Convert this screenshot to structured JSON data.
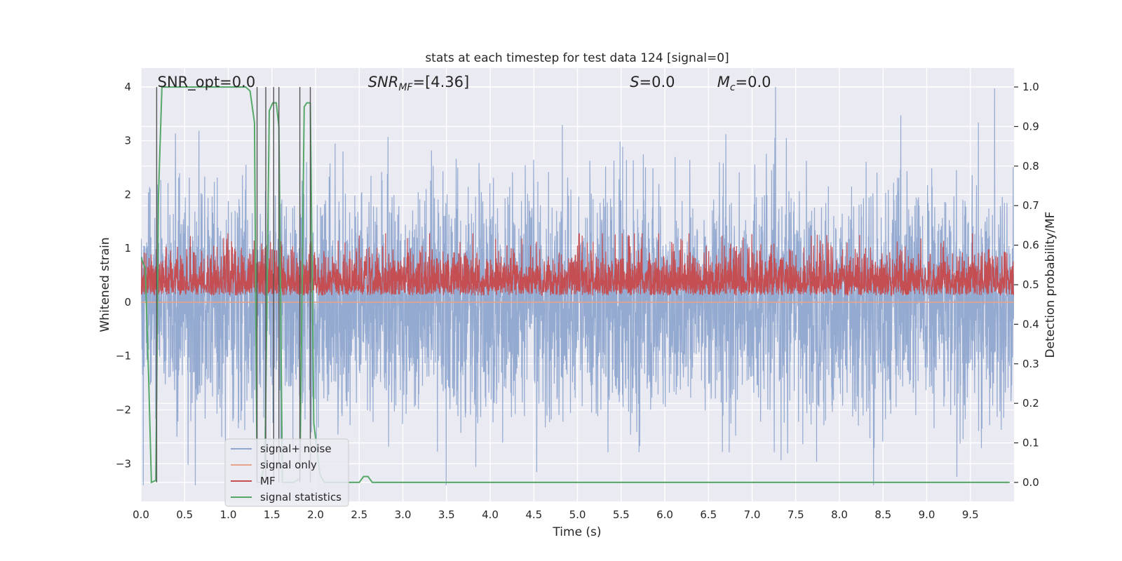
{
  "chart_data": {
    "type": "line",
    "title": "stats at each timestep for test data 124 [signal=0]",
    "xlabel": "Time (s)",
    "ylabel": "Whitened strain",
    "y2label": "Detection probability/MF",
    "xlim": [
      0.0,
      10.0
    ],
    "ylim": [
      -3.7,
      4.35
    ],
    "y2lim": [
      -0.048,
      1.048
    ],
    "x_ticks": [
      0.0,
      0.5,
      1.0,
      1.5,
      2.0,
      2.5,
      3.0,
      3.5,
      4.0,
      4.5,
      5.0,
      5.5,
      6.0,
      6.5,
      7.0,
      7.5,
      8.0,
      8.5,
      9.0,
      9.5
    ],
    "x_tick_labels": [
      "0.0",
      "0.5",
      "1.0",
      "1.5",
      "2.0",
      "2.5",
      "3.0",
      "3.5",
      "4.0",
      "4.5",
      "5.0",
      "5.5",
      "6.0",
      "6.5",
      "7.0",
      "7.5",
      "8.0",
      "8.5",
      "9.0",
      "9.5"
    ],
    "y_ticks": [
      4,
      3,
      2,
      1,
      0,
      -1,
      -2,
      -3
    ],
    "y_tick_labels": [
      "4",
      "3",
      "2",
      "1",
      "0",
      "−1",
      "−2",
      "−3"
    ],
    "y2_ticks": [
      1.0,
      0.9,
      0.8,
      0.7,
      0.6,
      0.5,
      0.4,
      0.3,
      0.2,
      0.1,
      0.0
    ],
    "y2_tick_labels": [
      "1.0",
      "0.9",
      "0.8",
      "0.7",
      "0.6",
      "0.5",
      "0.4",
      "0.3",
      "0.2",
      "0.1",
      "0.0"
    ],
    "grid": true,
    "legend_position": "lower-left",
    "annotations": [
      {
        "id": "snr-opt",
        "text": "SNR_opt=0.0",
        "x": 0.19
      },
      {
        "id": "snr-mf",
        "text": "SNR",
        "sub": "MF",
        "rest": "=[4.36]",
        "x": 2.6
      },
      {
        "id": "s",
        "text": "S",
        "rest": "=0.0",
        "x": 5.6
      },
      {
        "id": "mc",
        "text": "M",
        "sub": "c",
        "rest": "=0.0",
        "x": 6.6
      }
    ],
    "detection_markers_x": [
      0.18,
      1.33,
      1.43,
      1.52,
      1.58,
      1.82,
      1.94
    ],
    "series": [
      {
        "name": "signal+ noise",
        "axis": "left",
        "color": "#8fa6cf",
        "style": "noise",
        "sample_rate": 409.6,
        "std": 1.05,
        "note_amplitude_range": [
          -3.4,
          4.0
        ]
      },
      {
        "name": "signal only",
        "axis": "left",
        "color": "#e8a38a",
        "x": [
          0.0,
          10.0
        ],
        "y": [
          0.0,
          0.0
        ]
      },
      {
        "name": "MF",
        "axis": "right",
        "color": "#c44e52",
        "style": "noise",
        "center": 0.5,
        "spread": 0.045,
        "min": 0.455,
        "max": 0.63
      },
      {
        "name": "signal statistics",
        "axis": "right",
        "color": "#55a868",
        "x": [
          0.0,
          0.05,
          0.09,
          0.12,
          0.17,
          0.2,
          0.24,
          0.3,
          0.5,
          0.8,
          1.0,
          1.2,
          1.25,
          1.3,
          1.33,
          1.37,
          1.42,
          1.47,
          1.51,
          1.55,
          1.58,
          1.62,
          1.68,
          1.75,
          1.82,
          1.87,
          1.9,
          1.94,
          1.98,
          2.05,
          2.1,
          2.3,
          2.5,
          2.55,
          2.6,
          2.65,
          2.7,
          3.0,
          4.0,
          5.0,
          6.0,
          7.0,
          8.0,
          9.0,
          9.95
        ],
        "y": [
          0.57,
          0.54,
          0.25,
          0.0,
          0.005,
          0.72,
          1.0,
          1.0,
          1.0,
          1.0,
          1.0,
          1.0,
          0.99,
          0.91,
          0.0,
          0.0,
          0.05,
          0.94,
          0.96,
          0.96,
          0.9,
          0.0,
          0.0,
          0.0,
          0.01,
          0.95,
          0.96,
          0.96,
          0.15,
          0.02,
          0.0,
          0.0,
          0.0,
          0.015,
          0.015,
          0.0,
          0.0,
          0.0,
          0.0,
          0.0,
          0.0,
          0.0,
          0.0,
          0.0,
          0.0
        ]
      }
    ]
  },
  "colors": {
    "plot_background": "#eaeaf2",
    "grid": "#ffffff",
    "marker_lines": "#555555"
  }
}
